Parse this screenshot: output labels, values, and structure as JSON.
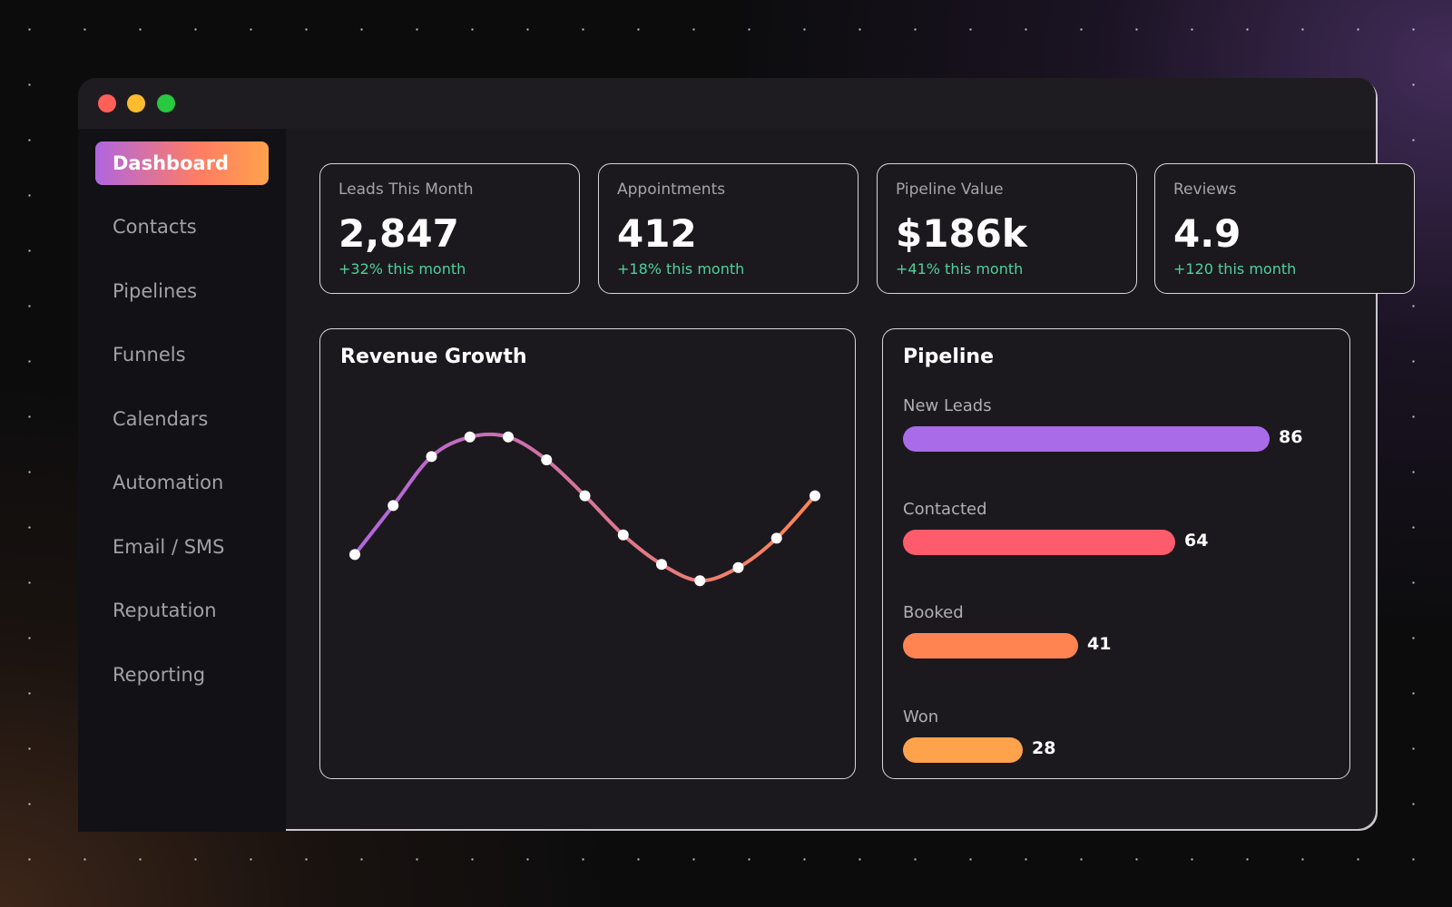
{
  "sidebar": {
    "items": [
      {
        "label": "Dashboard",
        "active": true
      },
      {
        "label": "Contacts"
      },
      {
        "label": "Pipelines"
      },
      {
        "label": "Funnels"
      },
      {
        "label": "Calendars"
      },
      {
        "label": "Automation"
      },
      {
        "label": "Email / SMS"
      },
      {
        "label": "Reputation"
      },
      {
        "label": "Reporting"
      }
    ]
  },
  "stats": [
    {
      "label": "Leads This Month",
      "value": "2,847",
      "delta": "+32% this month"
    },
    {
      "label": "Appointments",
      "value": "412",
      "delta": "+18% this month"
    },
    {
      "label": "Pipeline Value",
      "value": "$186k",
      "delta": "+41% this month"
    },
    {
      "label": "Reviews",
      "value": "4.9",
      "delta": "+120 this month"
    }
  ],
  "revenue": {
    "title": "Revenue Growth"
  },
  "pipeline": {
    "title": "Pipeline",
    "stages": [
      {
        "label": "New Leads",
        "value": "86",
        "color": "#a96be8"
      },
      {
        "label": "Contacted",
        "value": "64",
        "color": "#fe5b6c"
      },
      {
        "label": "Booked",
        "value": "41",
        "color": "#ff8452"
      },
      {
        "label": "Won",
        "value": "28",
        "color": "#ffa24c"
      }
    ]
  },
  "chart_data": {
    "type": "line",
    "title": "Revenue Growth",
    "x": [
      1,
      2,
      3,
      4,
      5,
      6,
      7,
      8,
      9,
      10,
      11,
      12,
      13
    ],
    "series": [
      {
        "values": [
          0.56,
          0.71,
          0.86,
          0.92,
          0.92,
          0.85,
          0.74,
          0.62,
          0.53,
          0.48,
          0.52,
          0.61,
          0.74
        ]
      }
    ],
    "ylim": [
      0,
      1
    ],
    "grid": false,
    "colors": [
      "#b066e0",
      "#ff8452"
    ]
  }
}
